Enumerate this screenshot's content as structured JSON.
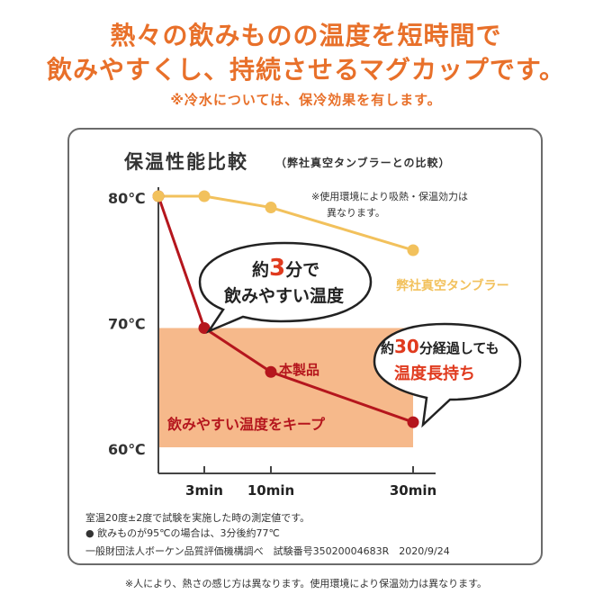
{
  "headline": {
    "line1": "熱々の飲みものの温度を短時間で",
    "line2": "飲みやすくし、持続させるマグカップです。",
    "note": "※冷水については、保冷効果を有します。"
  },
  "chart_data": {
    "type": "line",
    "title": "保温性能比較",
    "subtitle": "（弊社真空タンブラーとの比較）",
    "x_ticks": [
      "3min",
      "10min",
      "30min"
    ],
    "y_ticks": [
      "80℃",
      "70℃",
      "60℃"
    ],
    "ylim": [
      60,
      80
    ],
    "grid": false,
    "series": [
      {
        "name": "本製品",
        "color": "#b5161d",
        "x": [
          0,
          3,
          10,
          30
        ],
        "y": [
          80,
          69.5,
          66,
          62
        ]
      },
      {
        "name": "弊社真空タンブラー",
        "color": "#f2c15c",
        "x": [
          0,
          3,
          10,
          30
        ],
        "y": [
          80,
          80,
          79.1,
          75.7
        ]
      }
    ],
    "highlight_band": {
      "y_from": 60,
      "y_to": 69.5,
      "label": "飲みやすい温度をキープ",
      "color": "#f6b98b"
    },
    "annotations": {
      "usage_note_line1": "※使用環境により吸熱・保温効力は",
      "usage_note_line2": "異なります。",
      "bubble1_pre": "約",
      "bubble1_num": "3",
      "bubble1_post": "分で",
      "bubble1_line2": "飲みやすい温度",
      "bubble2_pre": "約",
      "bubble2_num": "30",
      "bubble2_post": "分経過しても",
      "bubble2_line2": "温度長持ち"
    }
  },
  "footnotes": {
    "line1": "室温20度±2度で試験を実施した時の測定値です。",
    "line2": "● 飲みものが95℃の場合は、3分後約77℃",
    "line3": "一般財団法人ボーケン品質評価機構調べ　試験番号35020004683R　2020/9/24"
  },
  "bottom_note": "※人により、熱さの感じ方は異なります。使用環境により保温効力は異なります。"
}
